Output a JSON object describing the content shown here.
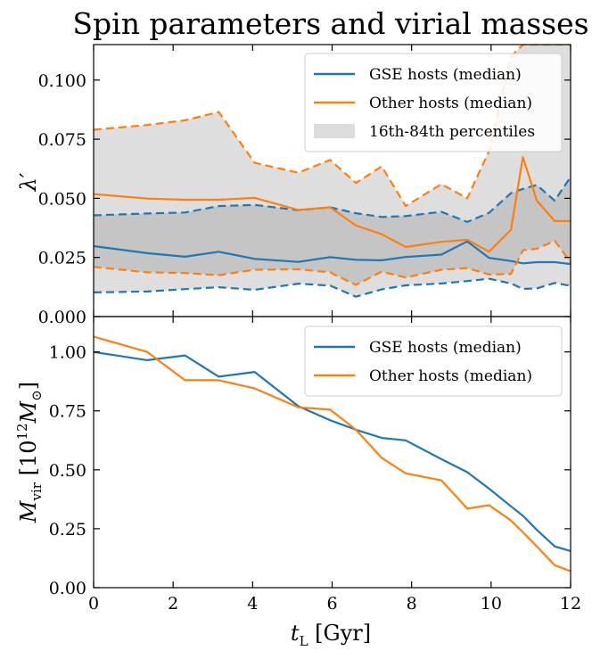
{
  "chart_data": [
    {
      "type": "line",
      "title": "Spin parameters and virial masses",
      "xlabel": "",
      "ylabel": "λ′",
      "xlim": [
        0,
        12
      ],
      "ylim": [
        0,
        0.115
      ],
      "yticks": [
        0.0,
        0.025,
        0.05,
        0.075,
        0.1
      ],
      "ytick_labels": [
        "0.000",
        "0.025",
        "0.050",
        "0.075",
        "0.100"
      ],
      "x": [
        0,
        1.35,
        2.3,
        3.15,
        4.05,
        5.15,
        5.95,
        6.6,
        7.25,
        7.85,
        8.75,
        9.4,
        9.95,
        10.5,
        10.8,
        11.15,
        11.6,
        12.0
      ],
      "legend_position": "top-right",
      "legend": [
        {
          "label": "GSE hosts (median)",
          "kind": "line",
          "color": "#1f77b4"
        },
        {
          "label": "Other hosts (median)",
          "kind": "line",
          "color": "#ff7f0e"
        },
        {
          "label": "16th-84th percentiles",
          "kind": "patch",
          "color": "#dcdcdc"
        }
      ],
      "series": [
        {
          "name": "GSE hosts (median)",
          "color": "#1f77b4",
          "style": "solid",
          "values": [
            0.0298,
            0.0268,
            0.0253,
            0.0274,
            0.0244,
            0.0231,
            0.0251,
            0.024,
            0.0238,
            0.0252,
            0.0262,
            0.0318,
            0.0248,
            0.0235,
            0.0225,
            0.023,
            0.023,
            0.0222
          ]
        },
        {
          "name": "GSE 16th percentile",
          "color": "#1f77b4",
          "style": "dashed",
          "values": [
            0.0102,
            0.0106,
            0.0116,
            0.0124,
            0.0113,
            0.0139,
            0.0131,
            0.0084,
            0.0115,
            0.0132,
            0.014,
            0.015,
            0.016,
            0.014,
            0.0117,
            0.0119,
            0.0142,
            0.013
          ]
        },
        {
          "name": "GSE 84th percentile",
          "color": "#1f77b4",
          "style": "dashed",
          "values": [
            0.0428,
            0.0436,
            0.044,
            0.0467,
            0.0472,
            0.045,
            0.0462,
            0.0437,
            0.0421,
            0.0425,
            0.0443,
            0.04,
            0.0439,
            0.0522,
            0.054,
            0.0556,
            0.049,
            0.059
          ]
        },
        {
          "name": "Other hosts (median)",
          "color": "#ff7f0e",
          "style": "solid",
          "values": [
            0.0518,
            0.0499,
            0.0494,
            0.0494,
            0.0502,
            0.0451,
            0.0462,
            0.0385,
            0.0348,
            0.0294,
            0.0316,
            0.0325,
            0.0274,
            0.0367,
            0.0674,
            0.049,
            0.0404,
            0.0404
          ]
        },
        {
          "name": "Other 16th percentile",
          "color": "#ff7f0e",
          "style": "dashed",
          "values": [
            0.021,
            0.0187,
            0.0184,
            0.0175,
            0.0198,
            0.02,
            0.0187,
            0.0134,
            0.019,
            0.0165,
            0.0198,
            0.0205,
            0.0178,
            0.018,
            0.028,
            0.0287,
            0.032,
            0.023
          ]
        },
        {
          "name": "Other 84th percentile",
          "color": "#ff7f0e",
          "style": "dashed",
          "values": [
            0.079,
            0.081,
            0.083,
            0.0865,
            0.065,
            0.0608,
            0.0662,
            0.0565,
            0.0635,
            0.0467,
            0.056,
            0.05,
            0.07,
            0.11,
            0.115,
            0.115,
            0.115,
            0.115
          ]
        }
      ]
    },
    {
      "type": "line",
      "title": "",
      "xlabel": "t_L [Gyr]",
      "xlabel_main": "t",
      "xlabel_sub": "L",
      "xlabel_rest": " [Gyr]",
      "ylabel": "M_vir [10^12 M_⊙]",
      "ylabel_main": "M",
      "ylabel_sub": "vir",
      "ylabel_mid": " [10",
      "ylabel_sup": "12",
      "ylabel_m2": "M",
      "ylabel_sub2": "⊙",
      "ylabel_end": "]",
      "xlim": [
        0,
        12
      ],
      "ylim": [
        0,
        1.15
      ],
      "xticks": [
        0,
        2,
        4,
        6,
        8,
        10,
        12
      ],
      "xtick_labels": [
        "0",
        "2",
        "4",
        "6",
        "8",
        "10",
        "12"
      ],
      "yticks": [
        0.0,
        0.25,
        0.5,
        0.75,
        1.0
      ],
      "ytick_labels": [
        "0.00",
        "0.25",
        "0.50",
        "0.75",
        "1.00"
      ],
      "legend_position": "top-right",
      "legend": [
        {
          "label": "GSE hosts (median)",
          "kind": "line",
          "color": "#1f77b4"
        },
        {
          "label": "Other hosts (median)",
          "kind": "line",
          "color": "#ff7f0e"
        }
      ],
      "series": [
        {
          "name": "GSE hosts (median)",
          "color": "#1f77b4",
          "style": "solid",
          "x": [
            0,
            1.35,
            2.3,
            3.15,
            4.05,
            5.15,
            5.95,
            6.6,
            7.25,
            7.85,
            8.75,
            9.4,
            9.95,
            10.5,
            10.8,
            11.15,
            11.6,
            12.0
          ],
          "values": [
            1.0,
            0.965,
            0.985,
            0.895,
            0.915,
            0.77,
            0.71,
            0.67,
            0.635,
            0.625,
            0.545,
            0.49,
            0.42,
            0.345,
            0.305,
            0.245,
            0.175,
            0.155
          ]
        },
        {
          "name": "Other hosts (median)",
          "color": "#ff7f0e",
          "style": "solid",
          "x": [
            0,
            1.35,
            2.3,
            3.15,
            4.05,
            5.15,
            5.95,
            6.6,
            7.25,
            7.85,
            8.75,
            9.4,
            9.95,
            10.5,
            10.8,
            11.15,
            11.6,
            12.0
          ],
          "values": [
            1.065,
            1.0,
            0.88,
            0.88,
            0.845,
            0.765,
            0.755,
            0.67,
            0.55,
            0.485,
            0.455,
            0.335,
            0.35,
            0.285,
            0.235,
            0.175,
            0.095,
            0.07
          ]
        }
      ]
    }
  ]
}
